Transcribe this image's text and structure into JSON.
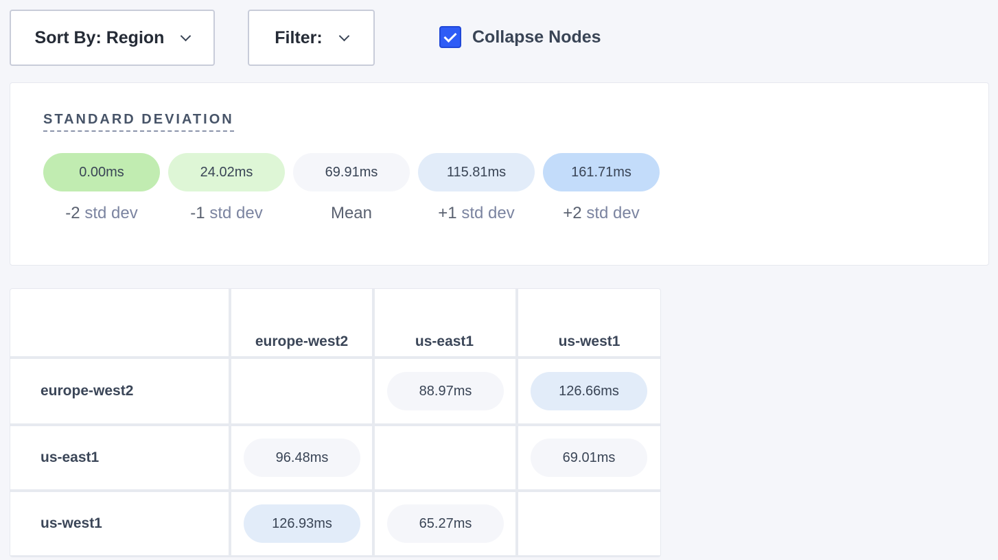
{
  "toolbar": {
    "sort_label": "Sort By: Region",
    "filter_label": "Filter:",
    "collapse_label": "Collapse Nodes",
    "collapse_checked": true
  },
  "std_dev": {
    "title": "STANDARD DEVIATION",
    "items": [
      {
        "value": "0.00ms",
        "prefix": "-2",
        "suffix": "std dev",
        "color": "#c1ecb1"
      },
      {
        "value": "24.02ms",
        "prefix": "-1",
        "suffix": "std dev",
        "color": "#def6d6"
      },
      {
        "value": "69.91ms",
        "prefix": "",
        "suffix": "Mean",
        "color": "#f5f6fa"
      },
      {
        "value": "115.81ms",
        "prefix": "+1",
        "suffix": "std dev",
        "color": "#e2ecf9"
      },
      {
        "value": "161.71ms",
        "prefix": "+2",
        "suffix": "std dev",
        "color": "#c3dcfa"
      }
    ]
  },
  "matrix": {
    "columns": [
      "europe-west2",
      "us-east1",
      "us-west1"
    ],
    "rows": [
      {
        "label": "europe-west2",
        "cells": [
          "",
          "88.97ms",
          "126.66ms"
        ],
        "colors": [
          "",
          "#f5f6fa",
          "#e2ecf9"
        ]
      },
      {
        "label": "us-east1",
        "cells": [
          "96.48ms",
          "",
          "69.01ms"
        ],
        "colors": [
          "#f5f6fa",
          "",
          "#f5f6fa"
        ]
      },
      {
        "label": "us-west1",
        "cells": [
          "126.93ms",
          "65.27ms",
          ""
        ],
        "colors": [
          "#e2ecf9",
          "#f5f6fa",
          ""
        ]
      }
    ]
  }
}
